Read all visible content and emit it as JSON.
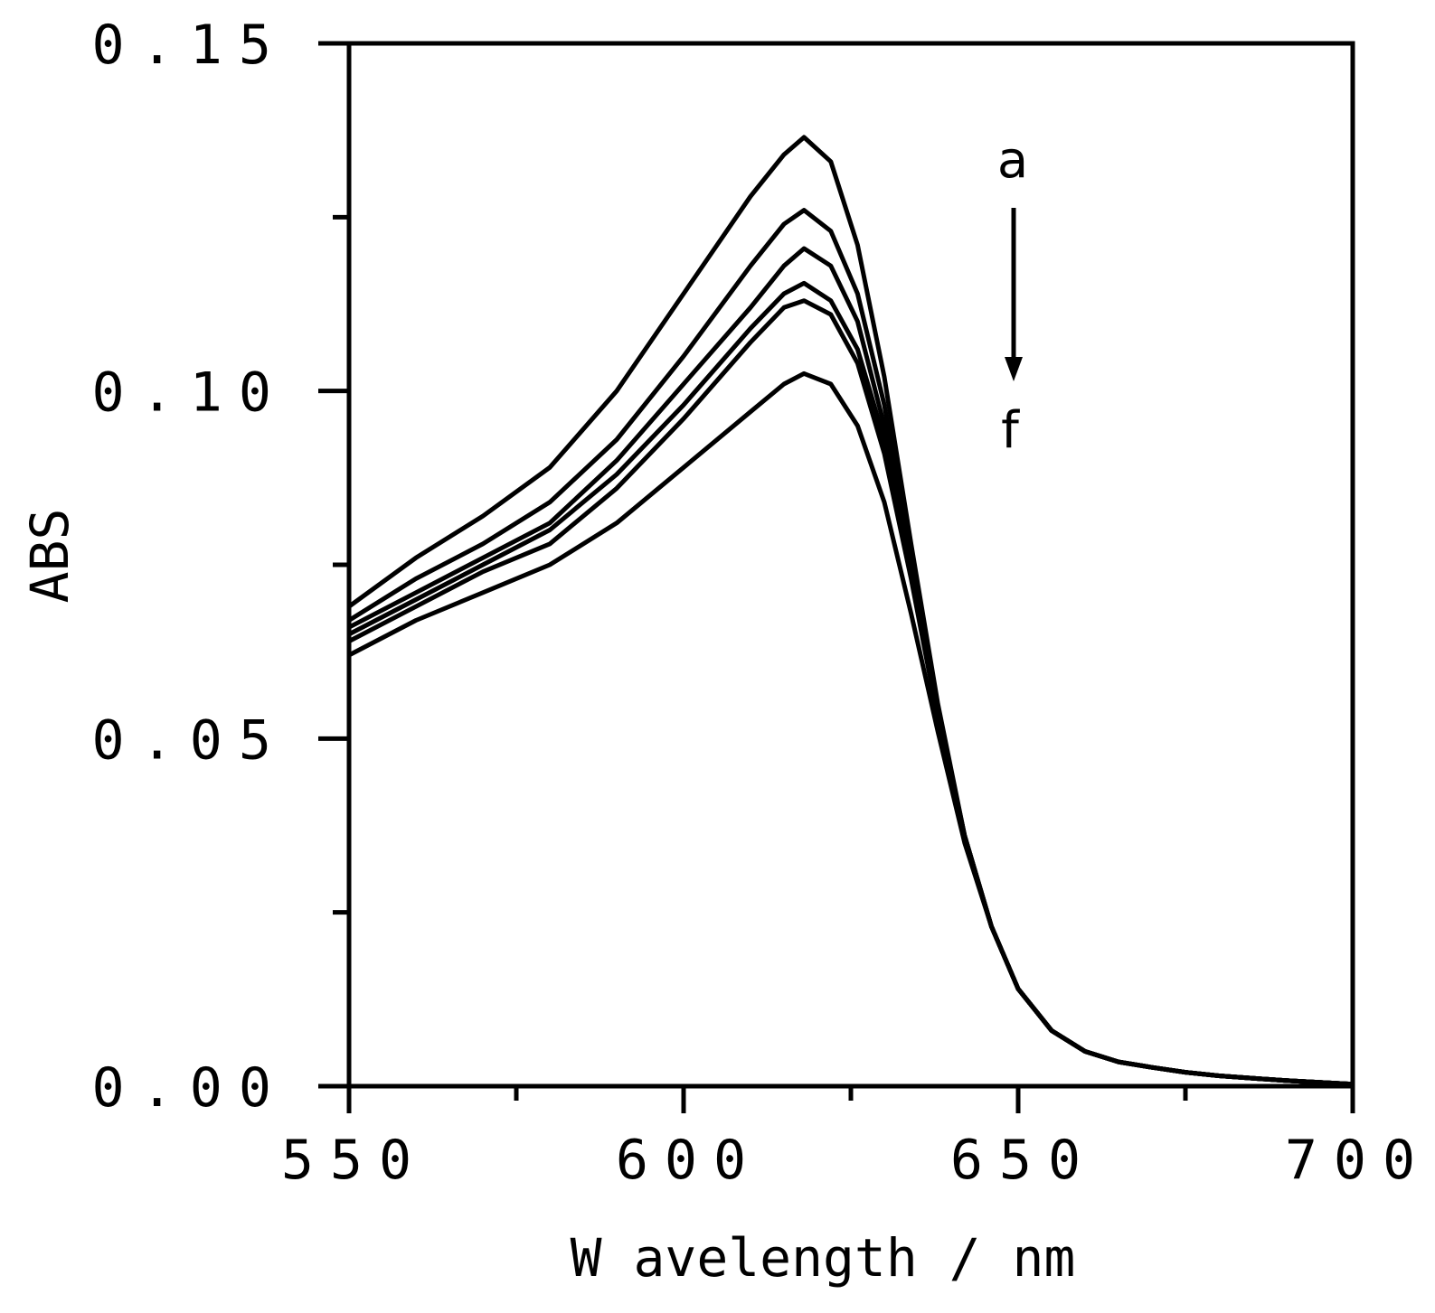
{
  "chart_data": {
    "type": "line",
    "title": "",
    "xlabel": "W avelength / nm",
    "ylabel": "ABS",
    "xlim": [
      550,
      700
    ],
    "ylim": [
      0.0,
      0.15
    ],
    "xticks": [
      550,
      575,
      600,
      625,
      650,
      675,
      700
    ],
    "xtick_labels": [
      "550",
      "",
      "600",
      "",
      "650",
      "",
      "700"
    ],
    "yticks": [
      0.0,
      0.025,
      0.05,
      0.075,
      0.1,
      0.125,
      0.15
    ],
    "ytick_labels": [
      "0.00",
      "",
      "0.05",
      "",
      "0.10",
      "",
      "0.15"
    ],
    "grid": false,
    "annotation": {
      "top_label": "a",
      "bottom_label": "f",
      "arrow": "down",
      "x": 649,
      "y_start": 0.126,
      "y_end": 0.102
    },
    "x": [
      550,
      560,
      570,
      580,
      590,
      600,
      610,
      615,
      618,
      622,
      626,
      630,
      634,
      638,
      642,
      646,
      650,
      655,
      660,
      665,
      670,
      675,
      680,
      690,
      700
    ],
    "series": [
      {
        "name": "a",
        "values": [
          0.069,
          0.076,
          0.082,
          0.089,
          0.1,
          0.114,
          0.128,
          0.134,
          0.1365,
          0.133,
          0.121,
          0.102,
          0.078,
          0.055,
          0.036,
          0.023,
          0.014,
          0.008,
          0.005,
          0.0035,
          0.0027,
          0.002,
          0.0015,
          0.0008,
          0.0003
        ]
      },
      {
        "name": "b",
        "values": [
          0.067,
          0.073,
          0.078,
          0.084,
          0.093,
          0.105,
          0.118,
          0.124,
          0.126,
          0.123,
          0.114,
          0.098,
          0.076,
          0.054,
          0.036,
          0.023,
          0.014,
          0.008,
          0.005,
          0.0035,
          0.0027,
          0.002,
          0.0015,
          0.0008,
          0.0003
        ]
      },
      {
        "name": "c",
        "values": [
          0.066,
          0.071,
          0.076,
          0.081,
          0.09,
          0.101,
          0.112,
          0.118,
          0.1205,
          0.118,
          0.11,
          0.095,
          0.075,
          0.054,
          0.036,
          0.023,
          0.014,
          0.008,
          0.005,
          0.0035,
          0.0027,
          0.002,
          0.0015,
          0.0008,
          0.0003
        ]
      },
      {
        "name": "d",
        "values": [
          0.065,
          0.07,
          0.075,
          0.08,
          0.088,
          0.098,
          0.109,
          0.114,
          0.1155,
          0.113,
          0.106,
          0.093,
          0.074,
          0.054,
          0.036,
          0.023,
          0.014,
          0.008,
          0.005,
          0.0035,
          0.0027,
          0.002,
          0.0015,
          0.0008,
          0.0003
        ]
      },
      {
        "name": "e",
        "values": [
          0.064,
          0.069,
          0.074,
          0.078,
          0.086,
          0.096,
          0.107,
          0.112,
          0.113,
          0.111,
          0.104,
          0.091,
          0.073,
          0.053,
          0.036,
          0.023,
          0.014,
          0.008,
          0.005,
          0.0035,
          0.0027,
          0.002,
          0.0015,
          0.0008,
          0.0003
        ]
      },
      {
        "name": "f",
        "values": [
          0.062,
          0.067,
          0.071,
          0.075,
          0.081,
          0.089,
          0.097,
          0.101,
          0.1025,
          0.101,
          0.095,
          0.084,
          0.068,
          0.051,
          0.035,
          0.023,
          0.014,
          0.008,
          0.005,
          0.0035,
          0.0027,
          0.002,
          0.0015,
          0.0008,
          0.0003
        ]
      }
    ]
  }
}
